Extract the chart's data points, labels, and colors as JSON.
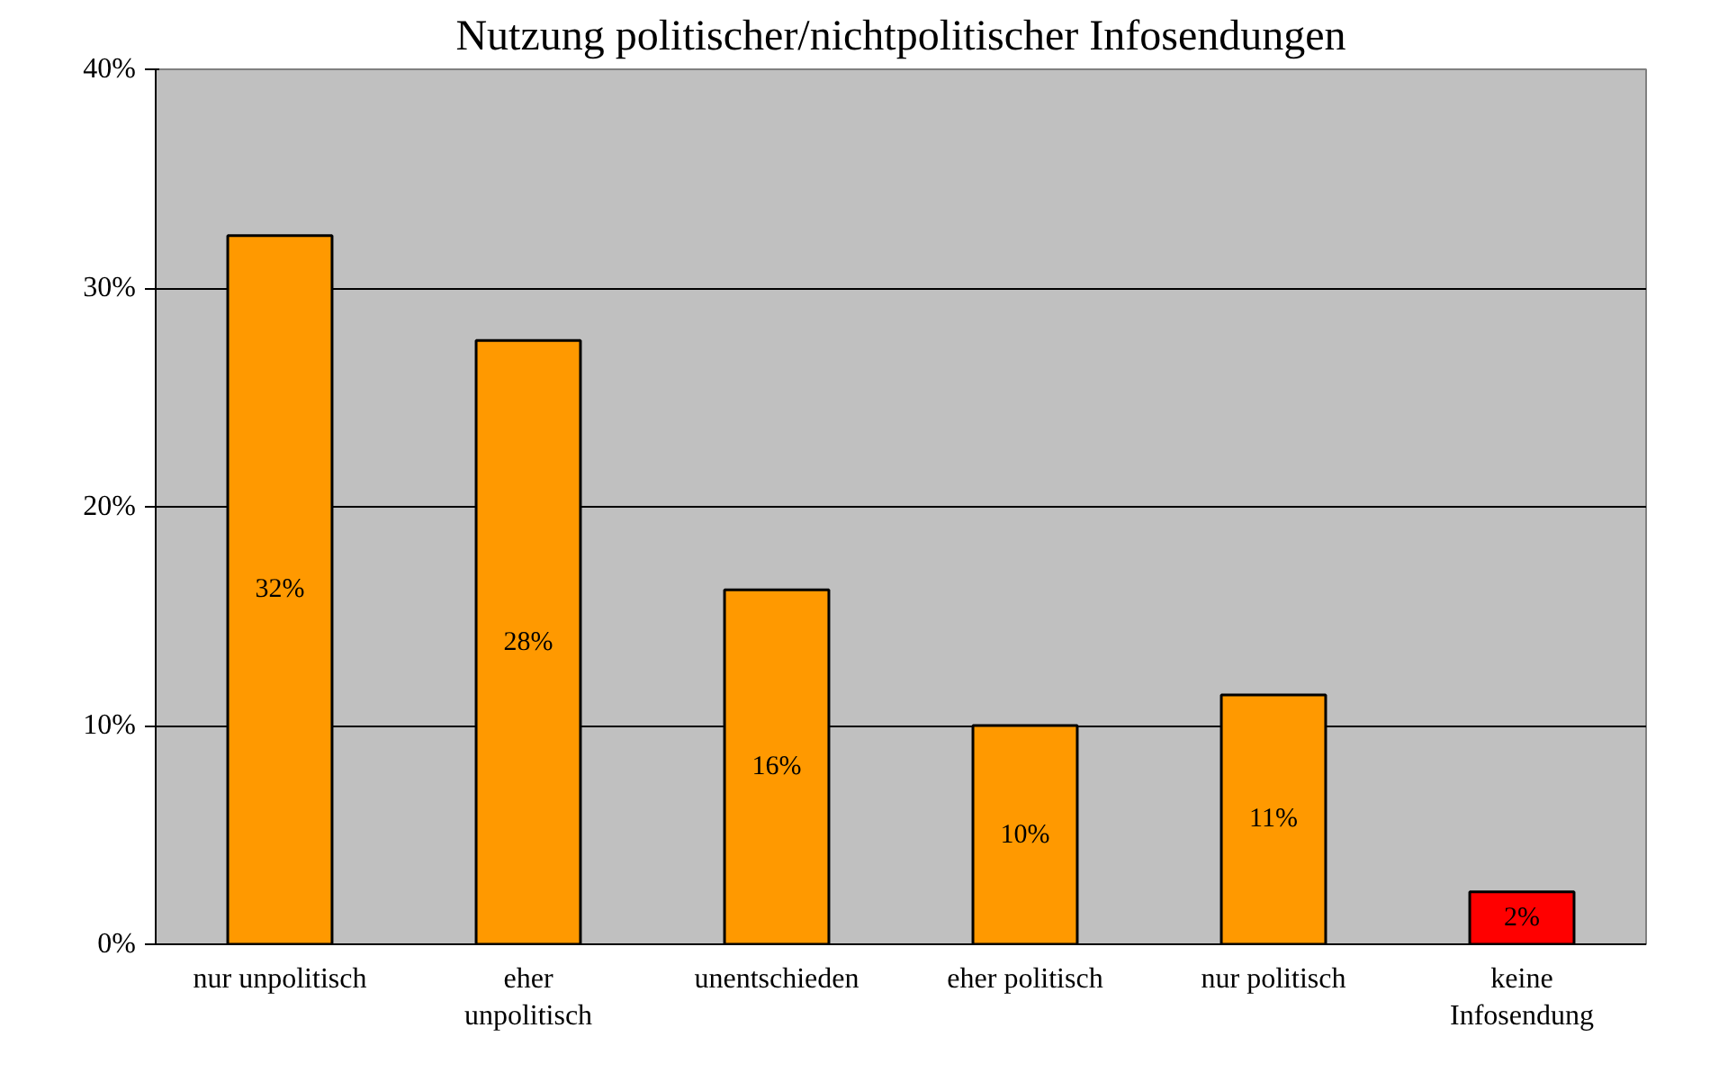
{
  "chart_data": {
    "type": "bar",
    "title": "Nutzung politischer/nichtpolitischer Infosendungen",
    "categories": [
      "nur unpolitisch",
      "eher unpolitisch",
      "unentschieden",
      "eher politisch",
      "nur politisch",
      "keine Infosendung"
    ],
    "values": [
      32.4,
      27.6,
      16.2,
      10.0,
      11.4,
      2.4
    ],
    "colors": [
      "#ff9900",
      "#ff9900",
      "#ff9900",
      "#ff9900",
      "#ff9900",
      "#ff0000"
    ],
    "value_labels": [
      "32%",
      "28%",
      "16%",
      "10%",
      "11%",
      "2%"
    ],
    "ylim": [
      0,
      40
    ],
    "yticks": [
      {
        "value": 0,
        "label": "0%"
      },
      {
        "value": 10,
        "label": "10%"
      },
      {
        "value": 20,
        "label": "20%"
      },
      {
        "value": 30,
        "label": "30%"
      },
      {
        "value": 40,
        "label": "40%"
      }
    ],
    "grid": "y"
  }
}
